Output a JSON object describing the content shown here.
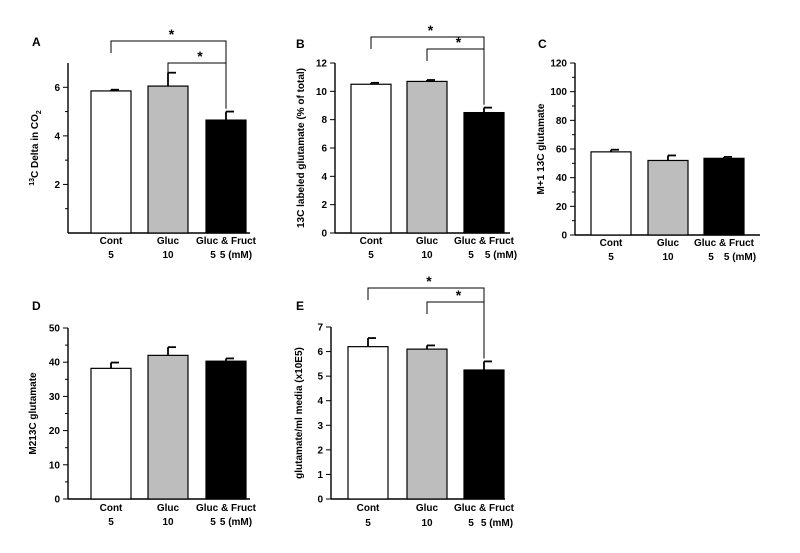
{
  "figure": {
    "unit_label": "5 (mM)"
  },
  "chart_data": [
    {
      "panel": "A",
      "type": "bar",
      "categories": [
        "Cont",
        "Gluc",
        "Gluc & Fruct"
      ],
      "sublabels": [
        "5",
        "10",
        "5"
      ],
      "values": [
        5.85,
        6.05,
        4.65
      ],
      "errors": [
        0.05,
        0.55,
        0.35
      ],
      "colors": [
        "#ffffff",
        "#bdbdbd",
        "#000000"
      ],
      "ylabel": "13C Delta in CO2",
      "ylabel_parts": {
        "sup": "13",
        "main": "C Delta in CO",
        "sub": "2"
      },
      "ylim": [
        0,
        7
      ],
      "yticks": [
        2,
        4,
        6
      ],
      "tick_labels": [
        "2",
        "4",
        "6"
      ],
      "minor_ticks": [
        1,
        3,
        5
      ],
      "significance": [
        {
          "from": 0,
          "to": 2,
          "label": "*"
        },
        {
          "from": 1,
          "to": 2,
          "label": "*"
        }
      ]
    },
    {
      "panel": "B",
      "type": "bar",
      "categories": [
        "Cont",
        "Gluc",
        "Gluc & Fruct"
      ],
      "sublabels": [
        "5",
        "10",
        "5"
      ],
      "values": [
        10.5,
        10.7,
        8.5
      ],
      "errors": [
        0.1,
        0.1,
        0.35
      ],
      "colors": [
        "#ffffff",
        "#bdbdbd",
        "#000000"
      ],
      "ylabel": "13C labeled glutamate (% of total)",
      "ylim": [
        0,
        12
      ],
      "yticks": [
        0,
        2,
        4,
        6,
        8,
        10,
        12
      ],
      "tick_labels": [
        "0",
        "2",
        "4",
        "6",
        "8",
        "10",
        "12"
      ],
      "minor_ticks": [],
      "significance": [
        {
          "from": 0,
          "to": 2,
          "label": "*"
        },
        {
          "from": 1,
          "to": 2,
          "label": "*"
        }
      ]
    },
    {
      "panel": "C",
      "type": "bar",
      "categories": [
        "Cont",
        "Gluc",
        "Gluc & Fruct"
      ],
      "sublabels": [
        "5",
        "10",
        "5"
      ],
      "values": [
        58,
        52,
        53.5
      ],
      "errors": [
        1.5,
        3.5,
        1
      ],
      "colors": [
        "#ffffff",
        "#bdbdbd",
        "#000000"
      ],
      "ylabel": "M+1 13C glutamate",
      "ylim": [
        0,
        120
      ],
      "yticks": [
        0,
        20,
        40,
        60,
        80,
        100,
        120
      ],
      "tick_labels": [
        "0",
        "20",
        "40",
        "60",
        "80",
        "100",
        "120"
      ],
      "minor_ticks": [
        10,
        30,
        50,
        70,
        90,
        110
      ],
      "significance": []
    },
    {
      "panel": "D",
      "type": "bar",
      "categories": [
        "Cont",
        "Gluc",
        "Gluc & Fruct"
      ],
      "sublabels": [
        "5",
        "10",
        "5"
      ],
      "values": [
        38.2,
        42,
        40.3
      ],
      "errors": [
        1.7,
        2.4,
        0.8
      ],
      "colors": [
        "#ffffff",
        "#bdbdbd",
        "#000000"
      ],
      "ylabel": "M213C glutamate",
      "ylim": [
        0,
        50
      ],
      "yticks": [
        0,
        10,
        20,
        30,
        40,
        50
      ],
      "tick_labels": [
        "0",
        "10",
        "20",
        "30",
        "40",
        "50"
      ],
      "minor_ticks": [
        5,
        15,
        25,
        35,
        45
      ],
      "significance": []
    },
    {
      "panel": "E",
      "type": "bar",
      "categories": [
        "Cont",
        "Gluc",
        "Gluc & Fruct"
      ],
      "sublabels": [
        "5",
        "10",
        "5"
      ],
      "values": [
        6.2,
        6.1,
        5.25
      ],
      "errors": [
        0.35,
        0.15,
        0.35
      ],
      "colors": [
        "#ffffff",
        "#bdbdbd",
        "#000000"
      ],
      "ylabel": "glutamate/ml media (x10E5)",
      "ylim": [
        0,
        7
      ],
      "yticks": [
        0,
        1,
        2,
        3,
        4,
        5,
        6,
        7
      ],
      "tick_labels": [
        "0",
        "1",
        "2",
        "3",
        "4",
        "5",
        "6",
        "7"
      ],
      "minor_ticks": [],
      "significance": [
        {
          "from": 0,
          "to": 2,
          "label": "*"
        },
        {
          "from": 1,
          "to": 2,
          "label": "*"
        }
      ]
    }
  ]
}
